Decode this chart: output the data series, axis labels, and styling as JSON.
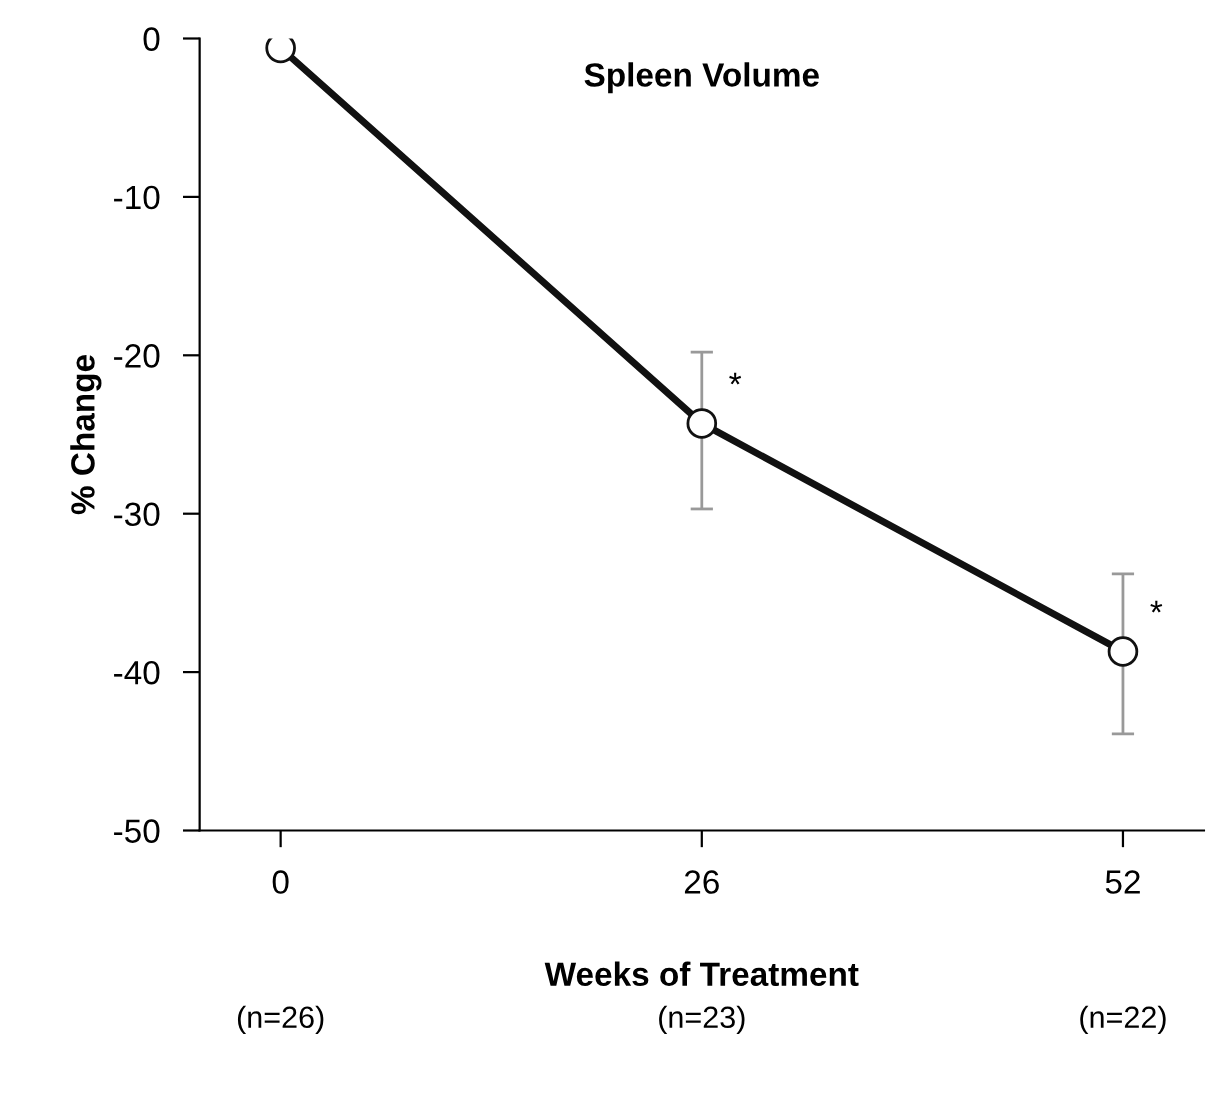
{
  "chart_data": {
    "type": "line",
    "title": "Spleen Volume",
    "xlabel": "Weeks of Treatment",
    "ylabel": "% Change",
    "x": [
      0,
      26,
      52
    ],
    "series": [
      {
        "color": "#111111",
        "values": [
          -0.6,
          -24.3,
          -38.7
        ],
        "errors": [
          null,
          [
            -29.7,
            -19.8
          ],
          [
            -43.9,
            -33.8
          ]
        ]
      }
    ],
    "xlim": [
      -5,
      57
    ],
    "xticks": [
      0,
      26,
      52
    ],
    "ylim": [
      -50,
      0
    ],
    "yticks": [
      -50,
      -40,
      -30,
      -20,
      -10,
      0
    ],
    "marker": "circle",
    "line_style": "solid",
    "grid": false,
    "legend": false,
    "annotations": [
      {
        "text": "*",
        "x": 26,
        "y": -24.3
      },
      {
        "text": "*",
        "x": 52,
        "y": -38.7
      },
      "(n=26)",
      "(n=23)",
      "(n=22)"
    ]
  }
}
